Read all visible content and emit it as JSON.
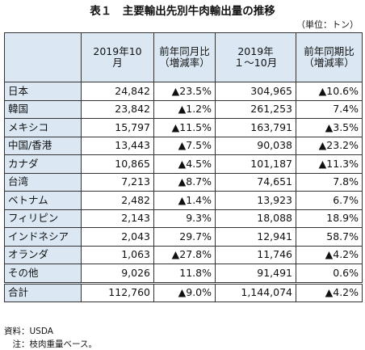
{
  "header": {
    "title": "表１　主要輸出先別牛肉輸出量の推移",
    "unit": "（単位：トン）"
  },
  "table": {
    "columns": [
      [
        ""
      ],
      [
        "2019年10",
        "月"
      ],
      [
        "前年同月比",
        "（増減率）"
      ],
      [
        "2019年",
        "１～10月"
      ],
      [
        "前年同期比",
        "（増減率）"
      ]
    ],
    "rows": [
      [
        "日本",
        "24,842",
        "▲23.5%",
        "304,965",
        "▲10.6%"
      ],
      [
        "韓国",
        "23,842",
        "▲1.2%",
        "261,253",
        "7.4%"
      ],
      [
        "メキシコ",
        "15,797",
        "▲11.5%",
        "163,791",
        "▲3.5%"
      ],
      [
        "中国/香港",
        "13,443",
        "▲7.5%",
        "90,038",
        "▲23.2%"
      ],
      [
        "カナダ",
        "10,865",
        "▲4.5%",
        "101,187",
        "▲11.3%"
      ],
      [
        "台湾",
        "7,213",
        "▲8.7%",
        "74,651",
        "7.8%"
      ],
      [
        "ベトナム",
        "2,482",
        "▲1.4%",
        "13,923",
        "6.7%"
      ],
      [
        "フィリピン",
        "2,143",
        "9.3%",
        "18,088",
        "18.9%"
      ],
      [
        "インドネシア",
        "2,043",
        "29.7%",
        "12,941",
        "58.7%"
      ],
      [
        "オランダ",
        "1,063",
        "▲27.8%",
        "11,746",
        "▲4.2%"
      ],
      [
        "その他",
        "9,026",
        "11.8%",
        "91,491",
        "0.6%"
      ]
    ],
    "total": [
      "合計",
      "112,760",
      "▲9.0%",
      "1,144,074",
      "▲4.2%"
    ]
  },
  "footer": {
    "source": "資料：USDA",
    "note": "　注：枝肉重量ベース。"
  }
}
